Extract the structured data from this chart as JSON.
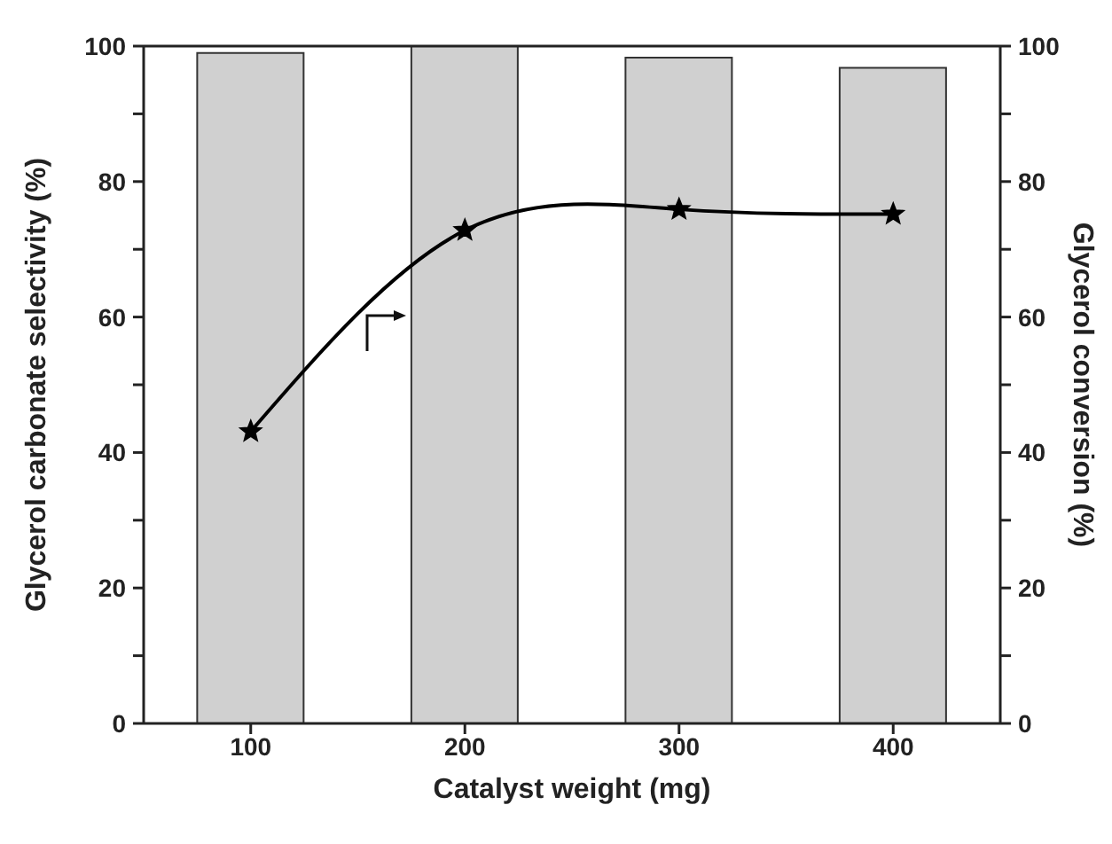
{
  "chart_data": {
    "type": "bar",
    "xlabel": "Catalyst weight (mg)",
    "ylabel": "Glycerol carbonate selectivity (%)",
    "y2label": "Glycerol conversion (%)",
    "categories": [
      "100",
      "200",
      "300",
      "400"
    ],
    "series": [
      {
        "color": "#d0d0d0",
        "values": [
          99.0,
          100,
          98.3,
          96.8
        ]
      },
      {
        "type": "line",
        "axis": "y2",
        "color": "#000000",
        "values": [
          43.1,
          72.8,
          75.9,
          75.2
        ],
        "marker": "star",
        "line_style": "solid"
      }
    ],
    "ylim": [
      0,
      100
    ],
    "yticks": [
      0,
      {
        "value": 10,
        "label": null
      },
      20,
      {
        "value": 30,
        "label": null
      },
      40,
      {
        "value": 50,
        "label": null
      },
      60,
      {
        "value": 70,
        "label": null
      },
      80,
      {
        "value": 90,
        "label": null
      },
      100
    ],
    "y2lim": [
      0,
      100
    ],
    "y2ticks": [
      0,
      {
        "value": 10,
        "label": null
      },
      20,
      {
        "value": 30,
        "label": null
      },
      40,
      {
        "value": 50,
        "label": null
      },
      60,
      {
        "value": 70,
        "label": null
      },
      80,
      {
        "value": 90,
        "label": null
      },
      100
    ],
    "grid": false,
    "legend": false
  }
}
